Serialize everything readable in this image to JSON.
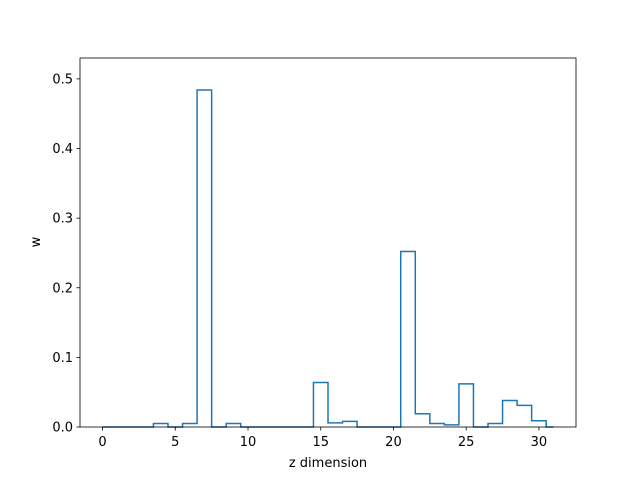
{
  "chart_data": {
    "type": "line",
    "style": "step",
    "title": "",
    "xlabel": "z dimension",
    "ylabel": "w",
    "xlim": [
      -1.55,
      32.55
    ],
    "ylim": [
      0,
      0.53
    ],
    "x_ticks": [
      0,
      5,
      10,
      15,
      20,
      25,
      30
    ],
    "y_ticks": [
      0.0,
      0.1,
      0.2,
      0.3,
      0.4,
      0.5
    ],
    "y_tick_labels": [
      "0.0",
      "0.1",
      "0.2",
      "0.3",
      "0.4",
      "0.5"
    ],
    "grid": false,
    "line_color": "#1f77b4",
    "x": [
      0,
      1,
      2,
      3,
      4,
      5,
      6,
      7,
      8,
      9,
      10,
      11,
      12,
      13,
      14,
      15,
      16,
      17,
      18,
      19,
      20,
      21,
      22,
      23,
      24,
      25,
      26,
      27,
      28,
      29,
      30,
      31
    ],
    "values": [
      0.0,
      0.0,
      0.0,
      0.0,
      0.005,
      0.0,
      0.005,
      0.484,
      0.0,
      0.005,
      0.0,
      0.0,
      0.0,
      0.0,
      0.0,
      0.064,
      0.006,
      0.008,
      0.0,
      0.0,
      0.0,
      0.252,
      0.019,
      0.005,
      0.003,
      0.062,
      0.0,
      0.005,
      0.038,
      0.031,
      0.009,
      0.0
    ]
  }
}
